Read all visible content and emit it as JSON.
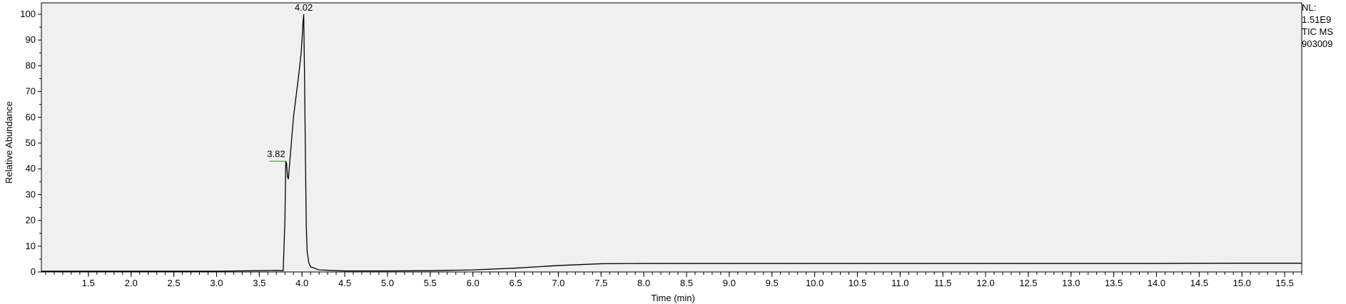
{
  "chart_data": {
    "type": "line",
    "xlabel": "Time (min)",
    "ylabel": "Relative Abundance",
    "xlim": [
      0.95,
      15.7
    ],
    "ylim": [
      0,
      100
    ],
    "x_ticks": [
      "1.5",
      "2.0",
      "2.5",
      "3.0",
      "3.5",
      "4.0",
      "4.5",
      "5.0",
      "5.5",
      "6.0",
      "6.5",
      "7.0",
      "7.5",
      "8.0",
      "8.5",
      "9.0",
      "9.5",
      "10.0",
      "10.5",
      "11.0",
      "11.5",
      "12.0",
      "12.5",
      "13.0",
      "13.5",
      "14.0",
      "14.5",
      "15.0",
      "15.5"
    ],
    "y_ticks": [
      "0",
      "10",
      "20",
      "30",
      "40",
      "50",
      "60",
      "70",
      "80",
      "90",
      "100"
    ],
    "peak_labels": [
      {
        "text": "3.82",
        "x": 3.82,
        "y": 43
      },
      {
        "text": "4.02",
        "x": 4.02,
        "y": 100
      }
    ],
    "series": [
      {
        "x": [
          0.95,
          3.0,
          3.5,
          3.7,
          3.78,
          3.8,
          3.81,
          3.82,
          3.83,
          3.84,
          3.85,
          3.87,
          3.9,
          3.93,
          3.96,
          3.99,
          4.0,
          4.01,
          4.02,
          4.03,
          4.04,
          4.05,
          4.06,
          4.08,
          4.1,
          4.2,
          4.5,
          5.0,
          5.5,
          6.0,
          6.5,
          7.0,
          7.5,
          8.0,
          9.0,
          10.0,
          11.0,
          12.0,
          13.0,
          14.0,
          15.0,
          15.7
        ],
        "y": [
          0.3,
          0.3,
          0.5,
          0.6,
          0.5,
          20,
          43,
          42,
          37,
          36,
          40,
          48,
          60,
          68,
          76,
          85,
          90,
          96,
          100,
          75,
          45,
          18,
          8,
          3.5,
          2,
          0.8,
          0.4,
          0.4,
          0.5,
          0.8,
          1.5,
          2.5,
          3.2,
          3.3,
          3.3,
          3.3,
          3.3,
          3.3,
          3.3,
          3.3,
          3.4,
          3.4
        ]
      }
    ]
  },
  "nl_block": {
    "nl": "NL:",
    "nl_value": "1.51E9",
    "trace": "TIC  MS",
    "sample": "903009"
  }
}
